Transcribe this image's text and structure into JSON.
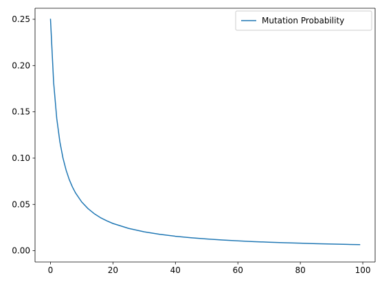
{
  "chart_data": {
    "type": "line",
    "title": "",
    "xlabel": "",
    "ylabel": "",
    "xlim": [
      -4.95,
      103.95
    ],
    "ylim": [
      -0.0122,
      0.2619
    ],
    "x_ticks": [
      0,
      20,
      40,
      60,
      80,
      100
    ],
    "x_tick_labels": [
      "0",
      "20",
      "40",
      "60",
      "80",
      "100"
    ],
    "y_ticks": [
      0.0,
      0.05,
      0.1,
      0.15,
      0.2,
      0.25
    ],
    "y_tick_labels": [
      "0.00",
      "0.05",
      "0.10",
      "0.15",
      "0.20",
      "0.25"
    ],
    "grid": false,
    "legend_position": "upper right",
    "series": [
      {
        "name": "Mutation Probability",
        "color": "#1f77b4",
        "x": [
          0,
          1,
          2,
          3,
          4,
          5,
          6,
          7,
          8,
          10,
          12,
          14,
          16,
          18,
          20,
          25,
          30,
          35,
          40,
          45,
          50,
          55,
          60,
          65,
          70,
          75,
          80,
          85,
          90,
          95,
          99
        ],
        "values": [
          0.25,
          0.1818,
          0.1429,
          0.1176,
          0.1,
          0.087,
          0.0769,
          0.069,
          0.0625,
          0.0526,
          0.0455,
          0.04,
          0.0357,
          0.0323,
          0.0294,
          0.0241,
          0.0204,
          0.0177,
          0.0156,
          0.014,
          0.0127,
          0.0116,
          0.0106,
          0.0098,
          0.0092,
          0.0086,
          0.0081,
          0.0076,
          0.0072,
          0.0068,
          0.0066
        ]
      }
    ]
  }
}
